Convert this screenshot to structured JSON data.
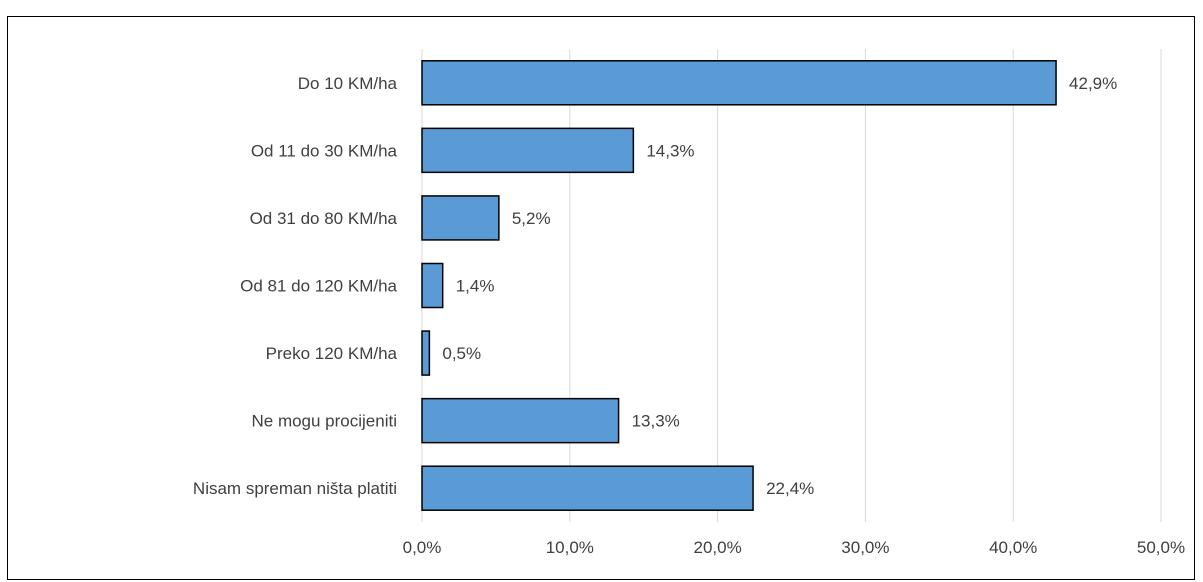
{
  "page_title": "",
  "chart_data": {
    "type": "bar",
    "orientation": "horizontal",
    "title": "",
    "xlabel": "",
    "ylabel": "",
    "categories": [
      "Do 10 KM/ha",
      "Od 11 do 30 KM/ha",
      "Od 31 do 80 KM/ha",
      "Od 81 do 120 KM/ha",
      "Preko 120 KM/ha",
      "Ne mogu procijeniti",
      "Nisam spreman ništa platiti"
    ],
    "values": [
      42.9,
      14.3,
      5.2,
      1.4,
      0.5,
      13.3,
      22.4
    ],
    "value_labels": [
      "42,9%",
      "14,3%",
      "5,2%",
      "1,4%",
      "0,5%",
      "13,3%",
      "22,4%"
    ],
    "xlim": [
      0,
      50
    ],
    "x_ticks": [
      "0,0%",
      "10,0%",
      "20,0%",
      "30,0%",
      "40,0%",
      "50,0%"
    ],
    "grid": true,
    "legend": "none",
    "colors": {
      "bar_fill": "#5B9BD5",
      "bar_stroke": "#000000",
      "grid": "#D9D9D9",
      "text": "#404040"
    }
  }
}
